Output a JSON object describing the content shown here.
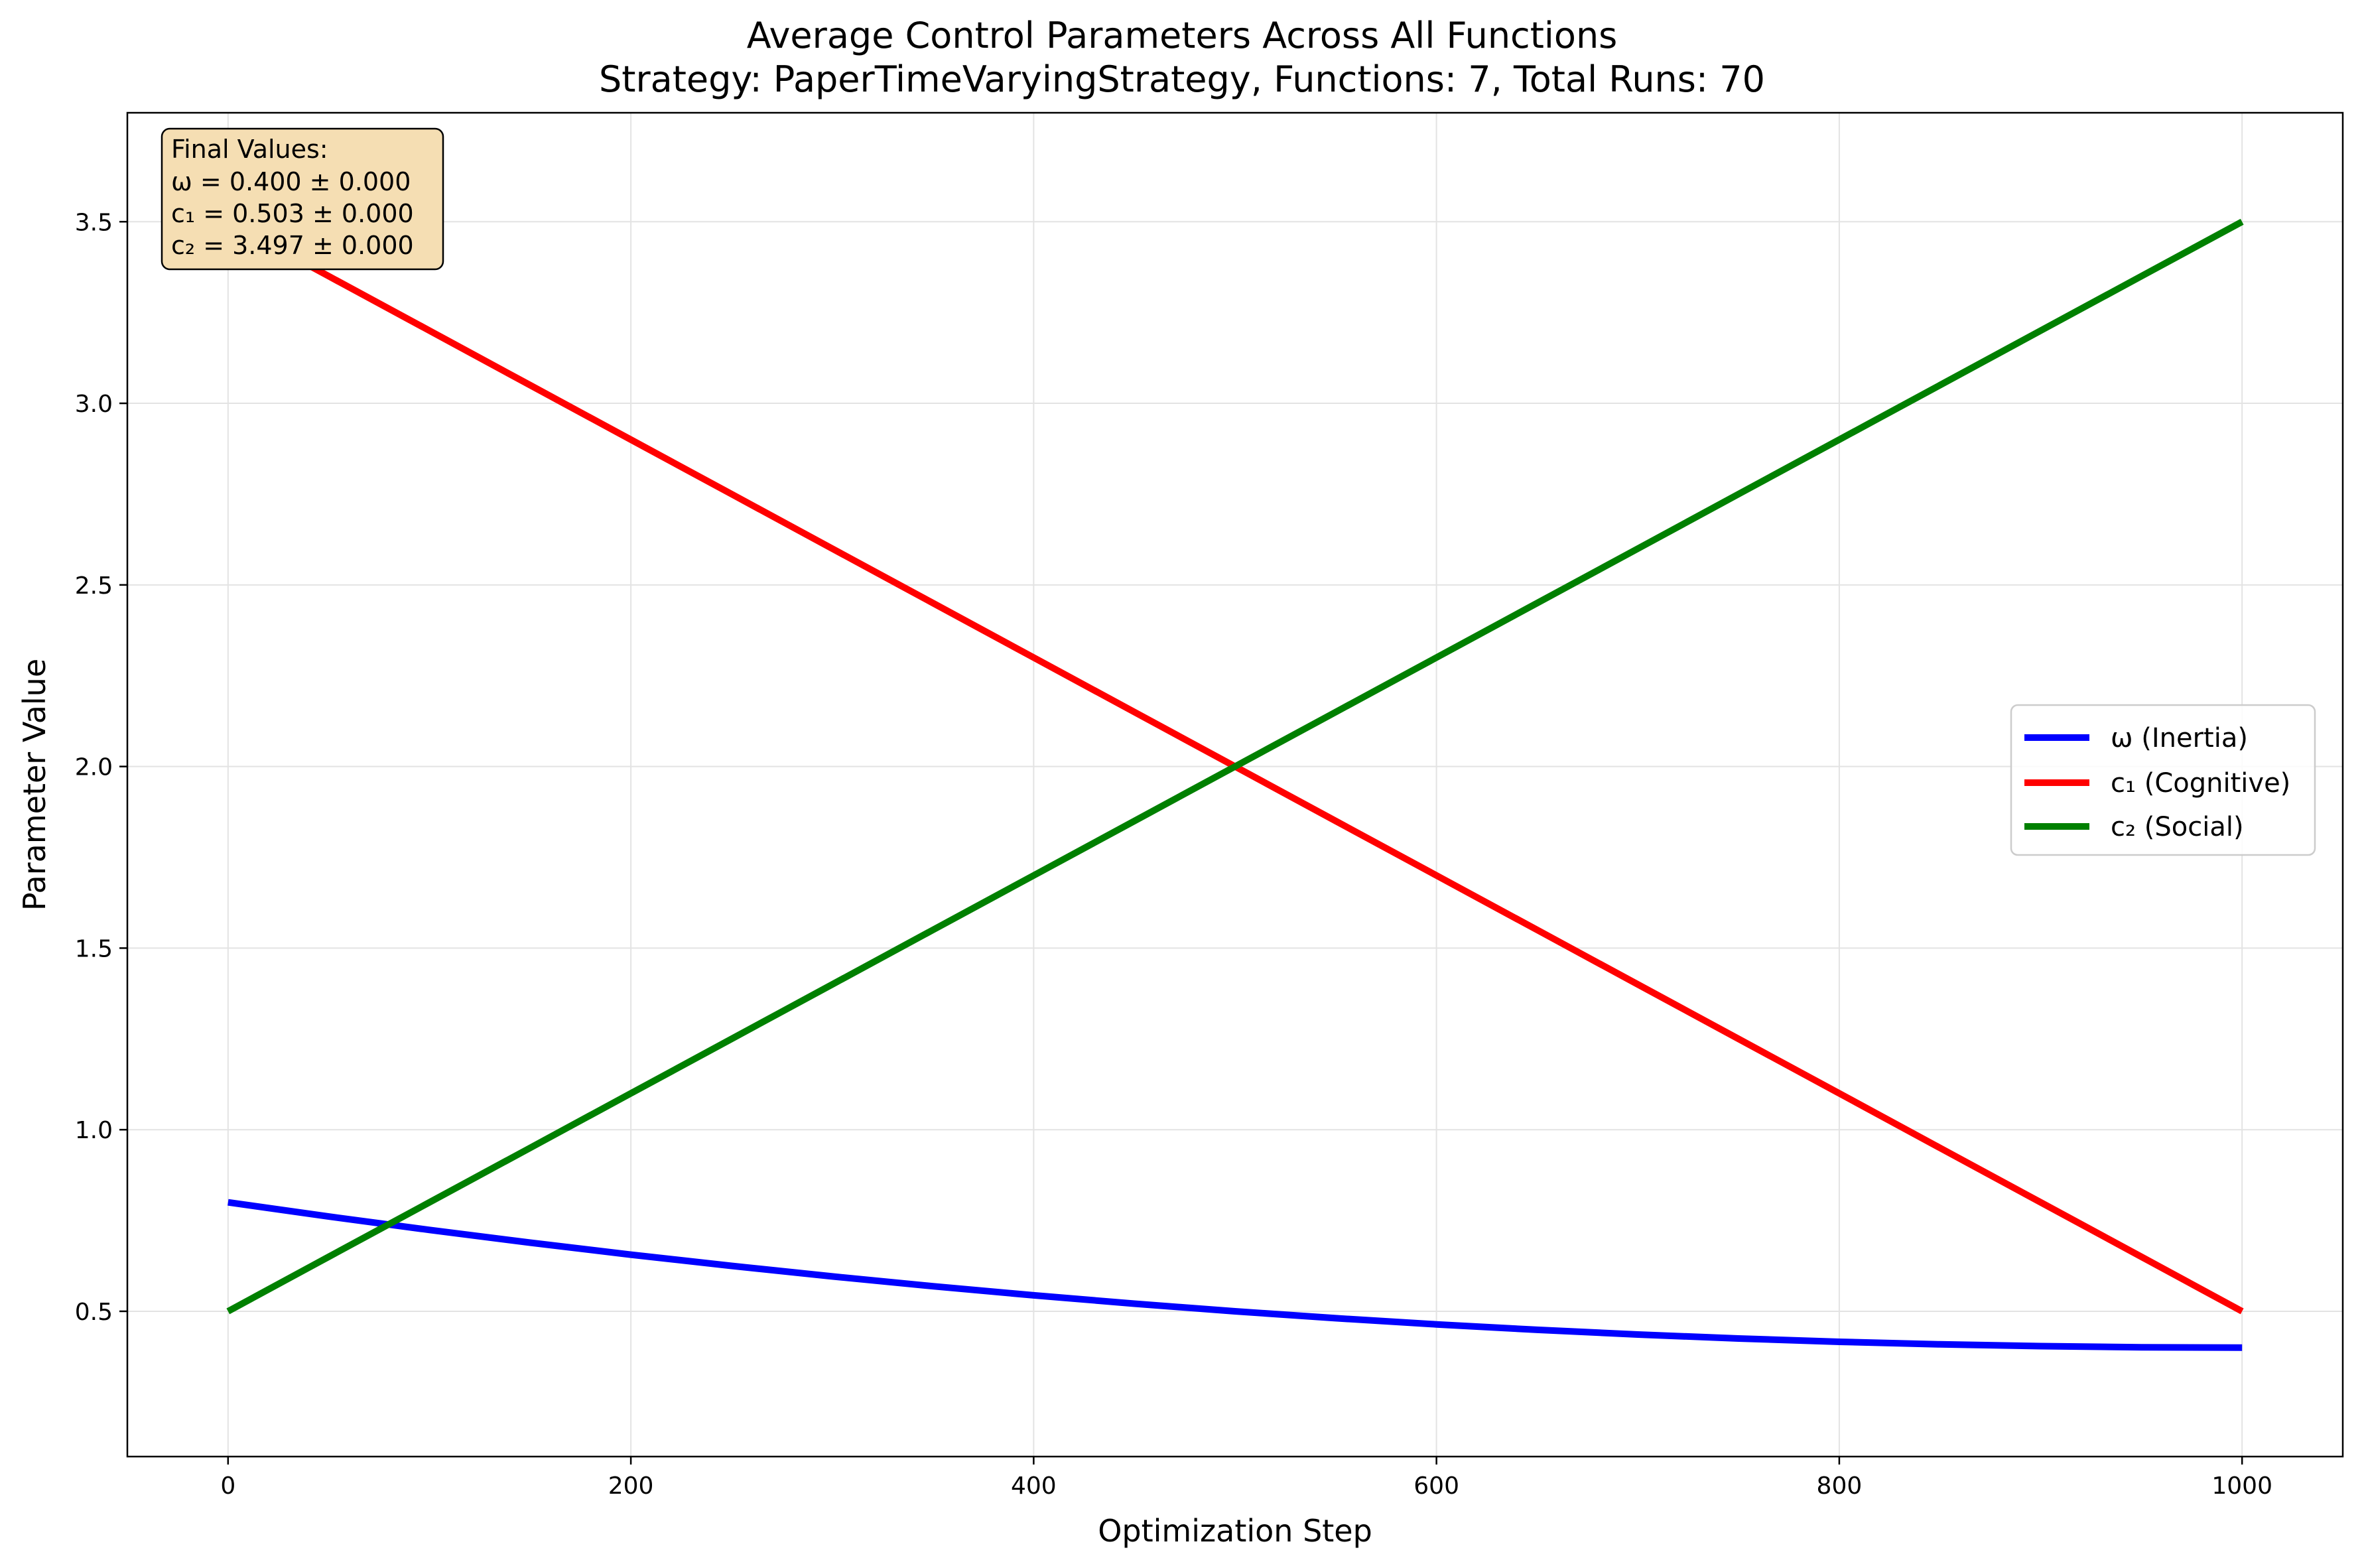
{
  "chart_data": {
    "type": "line",
    "title": "Average Control Parameters Across All Functions",
    "subtitle": "Strategy: PaperTimeVaryingStrategy, Functions: 7, Total Runs: 70",
    "xlabel": "Optimization Step",
    "ylabel": "Parameter Value",
    "xlim": [
      -50,
      1050
    ],
    "ylim": [
      0.1,
      3.8
    ],
    "xticks": [
      0,
      200,
      400,
      600,
      800,
      1000
    ],
    "xtick_labels": [
      "0",
      "200",
      "400",
      "600",
      "800",
      "1000"
    ],
    "yticks": [
      0.5,
      1.0,
      1.5,
      2.0,
      2.5,
      3.0,
      3.5
    ],
    "ytick_labels": [
      "0.5",
      "1.0",
      "1.5",
      "2.0",
      "2.5",
      "3.0",
      "3.5"
    ],
    "grid": true,
    "legend_position": "center-right",
    "x": [
      0,
      50,
      100,
      150,
      200,
      250,
      300,
      350,
      400,
      450,
      500,
      550,
      600,
      650,
      700,
      750,
      800,
      850,
      900,
      950,
      1000
    ],
    "series": [
      {
        "name": "ω (Inertia)",
        "color": "#0000ff",
        "values": [
          0.8,
          0.761,
          0.724,
          0.689,
          0.656,
          0.625,
          0.596,
          0.569,
          0.544,
          0.521,
          0.5,
          0.481,
          0.464,
          0.449,
          0.436,
          0.425,
          0.416,
          0.409,
          0.404,
          0.401,
          0.4
        ]
      },
      {
        "name": "c₁ (Cognitive)",
        "color": "#ff0000",
        "values": [
          3.5,
          3.35,
          3.2,
          3.05,
          2.9,
          2.75,
          2.6,
          2.45,
          2.3,
          2.15,
          2.0,
          1.85,
          1.7,
          1.55,
          1.4,
          1.25,
          1.1,
          0.95,
          0.8,
          0.65,
          0.5
        ]
      },
      {
        "name": "c₂ (Social)",
        "color": "#008000",
        "values": [
          0.5,
          0.65,
          0.8,
          0.95,
          1.1,
          1.25,
          1.4,
          1.55,
          1.7,
          1.85,
          2.0,
          2.15,
          2.3,
          2.45,
          2.6,
          2.75,
          2.9,
          3.05,
          3.2,
          3.35,
          3.5
        ]
      }
    ],
    "annotation": {
      "lines": [
        "Final Values:",
        "ω = 0.400 ± 0.000",
        "c₁ = 0.503 ± 0.000",
        "c₂ = 3.497 ± 0.000"
      ],
      "background": "#f5deb3"
    }
  }
}
